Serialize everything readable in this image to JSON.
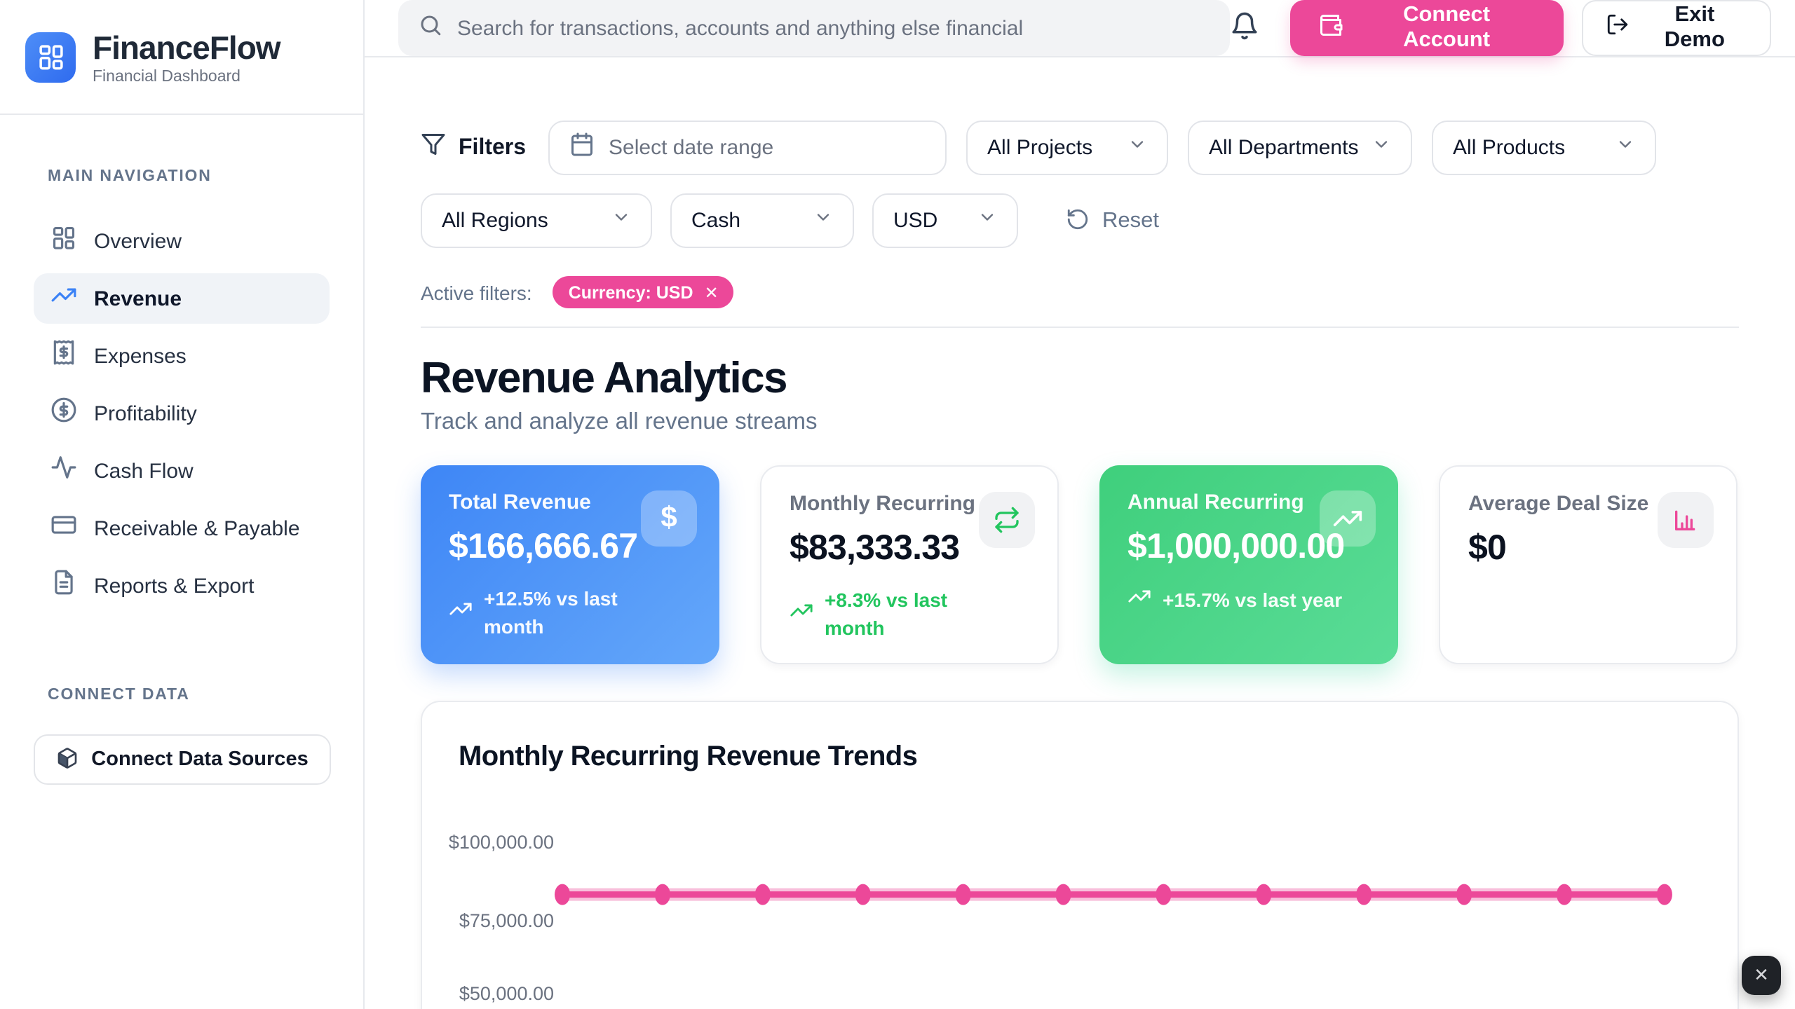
{
  "brand": {
    "name": "FinanceFlow",
    "subtitle": "Financial Dashboard"
  },
  "topbar": {
    "search_placeholder": "Search for transactions, accounts and anything else financial",
    "connect_account_label": "Connect Account",
    "exit_demo_label": "Exit Demo"
  },
  "sidebar": {
    "nav_title": "MAIN NAVIGATION",
    "items": [
      {
        "label": "Overview",
        "icon": "layout-dashboard-icon",
        "active": false
      },
      {
        "label": "Revenue",
        "icon": "trending-up-icon",
        "active": true
      },
      {
        "label": "Expenses",
        "icon": "receipt-icon",
        "active": false
      },
      {
        "label": "Profitability",
        "icon": "circle-dollar-icon",
        "active": false
      },
      {
        "label": "Cash Flow",
        "icon": "activity-icon",
        "active": false
      },
      {
        "label": "Receivable & Payable",
        "icon": "credit-card-icon",
        "active": false
      },
      {
        "label": "Reports & Export",
        "icon": "file-text-icon",
        "active": false
      }
    ],
    "connect_title": "CONNECT DATA",
    "connect_button_label": "Connect Data Sources"
  },
  "filters": {
    "label": "Filters",
    "date_placeholder": "Select date range",
    "selects": {
      "projects": "All Projects",
      "departments": "All Departments",
      "products": "All Products",
      "regions": "All Regions",
      "basis": "Cash",
      "currency": "USD"
    },
    "reset_label": "Reset",
    "active_label": "Active filters:",
    "active_chip": "Currency: USD"
  },
  "page": {
    "title": "Revenue Analytics",
    "subtitle": "Track and analyze all revenue streams"
  },
  "metrics": [
    {
      "label": "Total Revenue",
      "value": "$166,666.67",
      "delta": "+12.5% vs last month",
      "style": "blue",
      "icon": "dollar-icon"
    },
    {
      "label": "Monthly Recurring",
      "value": "$83,333.33",
      "delta": "+8.3% vs last month",
      "style": "white",
      "icon": "repeat-icon"
    },
    {
      "label": "Annual Recurring",
      "value": "$1,000,000.00",
      "delta": "+15.7% vs last year",
      "style": "green",
      "icon": "trending-up-icon"
    },
    {
      "label": "Average Deal Size",
      "value": "$0",
      "delta": "",
      "style": "white",
      "icon": "bar-chart-icon"
    }
  ],
  "chart_data": {
    "type": "line",
    "title": "Monthly Recurring Revenue Trends",
    "series": [
      {
        "name": "Monthly Recurring Revenue",
        "values": [
          83333.33,
          83333.33,
          83333.33,
          83333.33,
          83333.33,
          83333.33,
          83333.33,
          83333.33,
          83333.33,
          83333.33,
          83333.33,
          83333.33
        ]
      }
    ],
    "points_count": 12,
    "y_tick_labels": [
      "$100,000.00",
      "$75,000.00",
      "$50,000.00"
    ],
    "y_tick_values": [
      100000,
      75000,
      50000
    ],
    "ylim": [
      50000,
      112500
    ],
    "x_axis_labels_visible": false,
    "grid": false,
    "legend": false,
    "line_color": "#EC4899",
    "marker": "dot"
  },
  "colors": {
    "accent_pink": "#EC4899",
    "accent_blue": "#3B82F6",
    "accent_green": "#22C55E",
    "card_blue_gradient": [
      "#3E86F6",
      "#64A7FA"
    ],
    "card_green_gradient": [
      "#3FCF7C",
      "#5ADC97"
    ],
    "border": "#E7E9ED",
    "text_dark": "#0B1423",
    "text_gray": "#64748B"
  },
  "fab": {
    "close_glyph": "✕"
  }
}
